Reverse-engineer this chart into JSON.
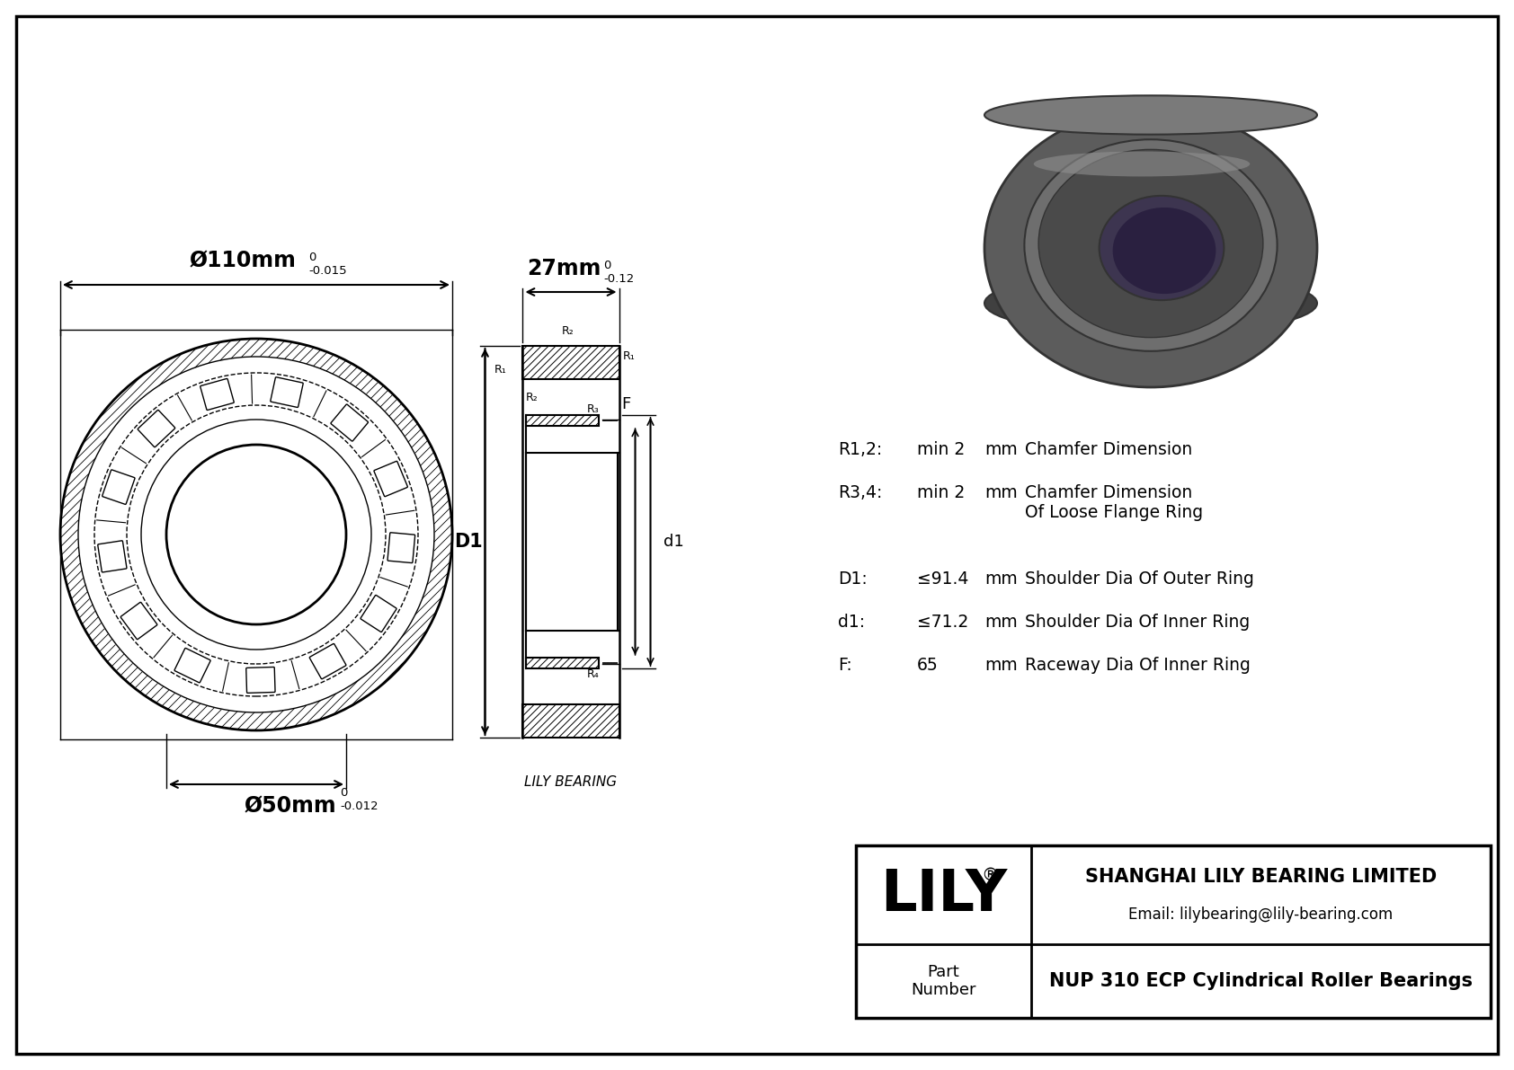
{
  "bg_color": "#ffffff",
  "border_color": "#000000",
  "line_color": "#000000",
  "drawing_color": "#000000",
  "title_company": "SHANGHAI LILY BEARING LIMITED",
  "title_email": "Email: lilybearing@lily-bearing.com",
  "title_lily": "LILY",
  "title_lily_super": "®",
  "title_part_label": "Part\nNumber",
  "title_part_value": "NUP 310 ECP Cylindrical Roller Bearings",
  "watermark": "LILY BEARING",
  "dim_outer_label": "Ø110mm",
  "dim_outer_tol_top": "0",
  "dim_outer_tol_bot": "-0.015",
  "dim_inner_label": "Ø50mm",
  "dim_inner_tol_top": "0",
  "dim_inner_tol_bot": "-0.012",
  "dim_width_label": "27mm",
  "dim_width_tol_top": "0",
  "dim_width_tol_bot": "-0.12",
  "spec_r12_label": "R1,2:",
  "spec_r12_val": "min 2",
  "spec_r12_unit": "mm",
  "spec_r12_desc": "Chamfer Dimension",
  "spec_r34_label": "R3,4:",
  "spec_r34_val": "min 2",
  "spec_r34_unit": "mm",
  "spec_r34_desc": "Chamfer Dimension",
  "spec_r34_desc2": "Of Loose Flange Ring",
  "spec_d1_label": "D1:",
  "spec_d1_val": "≤91.4",
  "spec_d1_unit": "mm",
  "spec_d1_desc": "Shoulder Dia Of Outer Ring",
  "spec_d1l_label": "d1:",
  "spec_d1l_val": "≤71.2",
  "spec_d1l_unit": "mm",
  "spec_d1l_desc": "Shoulder Dia Of Inner Ring",
  "spec_f_label": "F:",
  "spec_f_val": "65",
  "spec_f_unit": "mm",
  "spec_f_desc": "Raceway Dia Of Inner Ring",
  "front_label_D1": "D1",
  "front_label_F": "F",
  "front_label_d1": "d1",
  "front_label_R1": "R₁",
  "front_label_R2": "R₂",
  "front_label_R3": "R₃",
  "front_label_R4": "R₄",
  "photo_colors": {
    "outer_dark": "#5c5c5c",
    "outer_mid": "#6e6e6e",
    "outer_light": "#7a7a7a",
    "outer_rim": "#888888",
    "inner_dark": "#4a4a4a",
    "hole_color": "#3d3550",
    "hole_dark": "#2a2040",
    "edge_color": "#333333",
    "highlight": "#909090",
    "shadow": "#404040"
  }
}
